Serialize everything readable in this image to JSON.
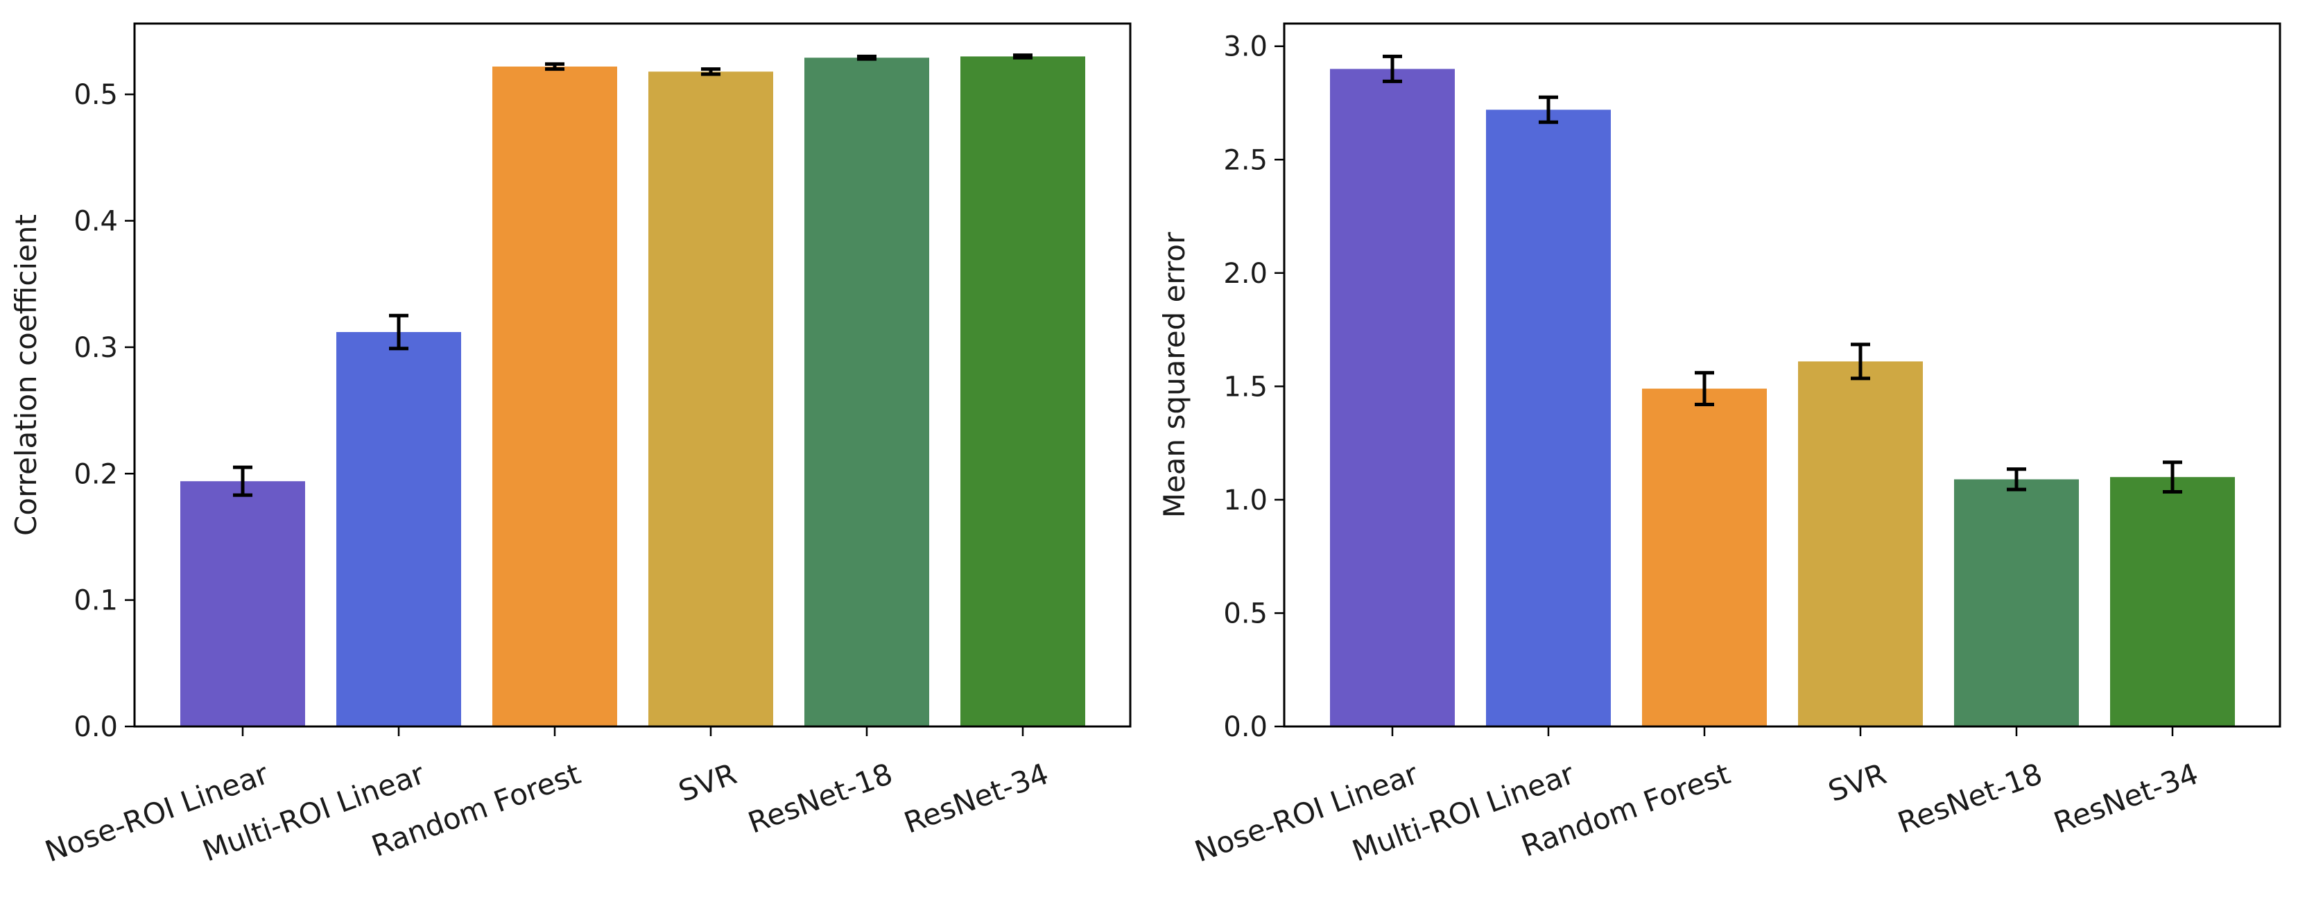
{
  "chart_data": [
    {
      "type": "bar",
      "title": "",
      "xlabel": "",
      "ylabel": "Correlation coefficient",
      "ylim": [
        0,
        0.556
      ],
      "yticks": [
        0.0,
        0.1,
        0.2,
        0.3,
        0.4,
        0.5
      ],
      "ytick_labels": [
        "0.0",
        "0.1",
        "0.2",
        "0.3",
        "0.4",
        "0.5"
      ],
      "categories": [
        "Nose-ROI Linear",
        "Multi-ROI Linear",
        "Random Forest",
        "SVR",
        "ResNet-18",
        "ResNet-34"
      ],
      "values": [
        0.194,
        0.312,
        0.522,
        0.518,
        0.529,
        0.53
      ],
      "errors": [
        0.011,
        0.013,
        0.002,
        0.002,
        0.001,
        0.001
      ],
      "colors": [
        "#6a5ac6",
        "#5469d9",
        "#ee9536",
        "#cfa843",
        "#4b8a5e",
        "#438a31"
      ],
      "grid": false,
      "legend": "none"
    },
    {
      "type": "bar",
      "title": "",
      "xlabel": "",
      "ylabel": "Mean squared error",
      "ylim": [
        0,
        3.1
      ],
      "yticks": [
        0.0,
        0.5,
        1.0,
        1.5,
        2.0,
        2.5,
        3.0
      ],
      "ytick_labels": [
        "0.0",
        "0.5",
        "1.0",
        "1.5",
        "2.0",
        "2.5",
        "3.0"
      ],
      "categories": [
        "Nose-ROI Linear",
        "Multi-ROI Linear",
        "Random Forest",
        "SVR",
        "ResNet-18",
        "ResNet-34"
      ],
      "values": [
        2.9,
        2.72,
        1.49,
        1.61,
        1.09,
        1.1
      ],
      "errors": [
        0.055,
        0.055,
        0.07,
        0.075,
        0.045,
        0.065
      ],
      "colors": [
        "#6a5ac6",
        "#5469d9",
        "#ee9536",
        "#cfa843",
        "#4b8a5e",
        "#438a31"
      ],
      "grid": false,
      "legend": "none"
    }
  ]
}
